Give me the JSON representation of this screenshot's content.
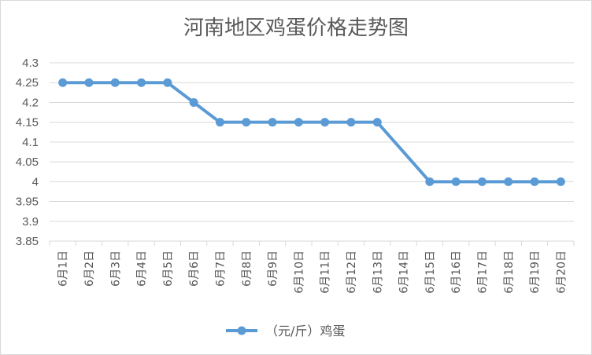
{
  "chart_data": {
    "type": "line",
    "title": "河南地区鸡蛋价格走势图",
    "categories": [
      "6月1日",
      "6月2日",
      "6月3日",
      "6月4日",
      "6月5日",
      "6月6日",
      "6月7日",
      "6月8日",
      "6月9日",
      "6月10日",
      "6月11日",
      "6月12日",
      "6月13日",
      "6月14日",
      "6月15日",
      "6月16日",
      "6月17日",
      "6月18日",
      "6月19日",
      "6月20日"
    ],
    "series": [
      {
        "name": "（元/斤）鸡蛋",
        "color": "#5b9bd5",
        "values": [
          4.25,
          4.25,
          4.25,
          4.25,
          4.25,
          4.2,
          4.15,
          4.15,
          4.15,
          4.15,
          4.15,
          4.15,
          4.15,
          null,
          4.0,
          4.0,
          4.0,
          4.0,
          4.0,
          4.0
        ]
      }
    ],
    "ylim": [
      3.85,
      4.3
    ],
    "yticks": [
      "4.3",
      "4.25",
      "4.2",
      "4.15",
      "4.1",
      "4.05",
      "4",
      "3.95",
      "3.9",
      "3.85"
    ],
    "xlabel": "",
    "ylabel": "",
    "grid": "horizontal",
    "legend_position": "bottom",
    "gridline_color": "#d9d9d9",
    "text_color": "#595959"
  }
}
